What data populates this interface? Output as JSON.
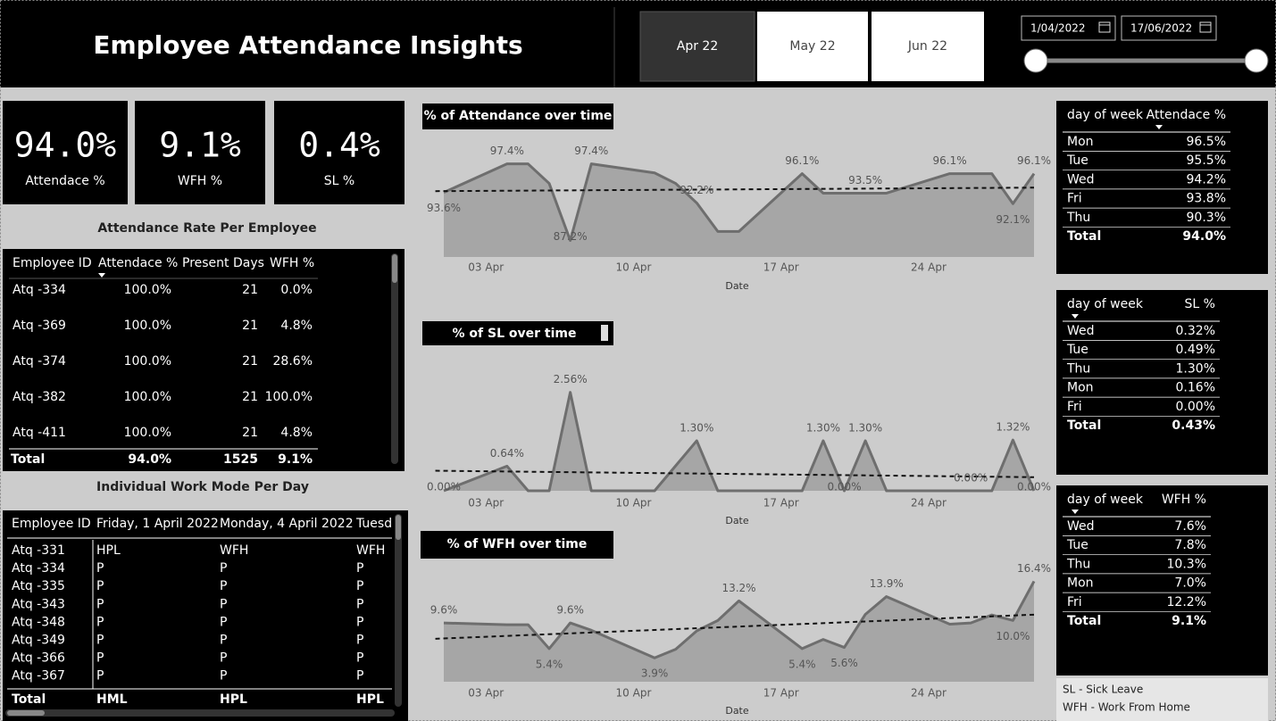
{
  "header": {
    "title": "Employee Attendance Insights",
    "months": [
      "Apr 22",
      "May 22",
      "Jun 22"
    ],
    "date_from": "1/04/2022",
    "date_to": "17/06/2022"
  },
  "kpis": [
    {
      "value": "94.0%",
      "label": "Attendace %"
    },
    {
      "value": "9.1%",
      "label": "WFH %"
    },
    {
      "value": "0.4%",
      "label": "SL %"
    }
  ],
  "employee_table": {
    "title": "Attendance Rate Per Employee",
    "columns": [
      "Employee ID",
      "Attendace %",
      "Present Days",
      "WFH %"
    ],
    "rows": [
      [
        "Atq -334",
        "100.0%",
        "21",
        "0.0%"
      ],
      [
        "Atq -369",
        "100.0%",
        "21",
        "4.8%"
      ],
      [
        "Atq -374",
        "100.0%",
        "21",
        "28.6%"
      ],
      [
        "Atq -382",
        "100.0%",
        "21",
        "100.0%"
      ],
      [
        "Atq -411",
        "100.0%",
        "21",
        "4.8%"
      ]
    ],
    "total": [
      "Total",
      "94.0%",
      "1525",
      "9.1%"
    ]
  },
  "work_mode_table": {
    "title": "Individual Work Mode Per Day",
    "columns": [
      "Employee ID",
      "Friday, 1 April 2022",
      "Monday, 4 April 2022",
      "Tuesda"
    ],
    "rows": [
      [
        "Atq -331",
        "HPL",
        "WFH",
        "WFH"
      ],
      [
        "Atq -334",
        "P",
        "P",
        "P"
      ],
      [
        "Atq -335",
        "P",
        "P",
        "P"
      ],
      [
        "Atq -343",
        "P",
        "P",
        "P"
      ],
      [
        "Atq -348",
        "P",
        "P",
        "P"
      ],
      [
        "Atq -349",
        "P",
        "P",
        "P"
      ],
      [
        "Atq -366",
        "P",
        "P",
        "P"
      ],
      [
        "Atq -367",
        "P",
        "P",
        "P"
      ]
    ],
    "total": [
      "Total",
      "HML",
      "HPL",
      "HPL"
    ]
  },
  "chart_data": [
    {
      "type": "line",
      "title": "% of Attendance over time",
      "x_label": "Date",
      "x": [
        1,
        4,
        5,
        6,
        7,
        8,
        11,
        12,
        13,
        14,
        15,
        18,
        19,
        20,
        21,
        22,
        25,
        26,
        27,
        28,
        29
      ],
      "values": [
        93.6,
        97.4,
        97.4,
        94.8,
        87.2,
        97.4,
        96.2,
        94.8,
        92.2,
        88.4,
        88.4,
        96.1,
        93.5,
        93.5,
        93.5,
        93.5,
        96.1,
        96.1,
        96.1,
        92.1,
        96.1
      ],
      "value_labels": [
        "93.6%",
        "97.4%",
        null,
        null,
        "87.2%",
        "97.4%",
        null,
        null,
        "92.2%",
        null,
        null,
        "96.1%",
        null,
        null,
        "93.5%",
        null,
        "96.1%",
        null,
        null,
        "92.1%",
        "96.1%"
      ],
      "xlim": [
        1,
        29
      ],
      "ylim": [
        85,
        99.5
      ],
      "xticks": [
        {
          "value": 3,
          "label": "03 Apr"
        },
        {
          "value": 10,
          "label": "10 Apr"
        },
        {
          "value": 17,
          "label": "17 Apr"
        },
        {
          "value": 24,
          "label": "24 Apr"
        }
      ],
      "color": "#6e6e6e",
      "area_color": "#a6a6a6",
      "trend_line": true
    },
    {
      "type": "line",
      "title": "% of SL over time",
      "x_label": "Date",
      "x": [
        1,
        4,
        5,
        6,
        7,
        8,
        11,
        12,
        13,
        14,
        15,
        18,
        19,
        20,
        21,
        22,
        25,
        26,
        27,
        28,
        29
      ],
      "values": [
        0,
        0.64,
        0,
        0,
        2.56,
        0,
        0,
        0.65,
        1.3,
        0,
        0,
        0,
        1.3,
        0,
        1.3,
        0,
        0,
        0,
        0,
        1.32,
        0
      ],
      "value_labels": [
        "0.00%",
        "0.64%",
        null,
        null,
        "2.56%",
        null,
        null,
        null,
        "1.30%",
        null,
        null,
        null,
        "1.30%",
        "0.00%",
        "1.30%",
        null,
        null,
        "0.00%",
        null,
        "1.32%",
        "0.00%"
      ],
      "xlim": [
        1,
        29
      ],
      "ylim": [
        0,
        2.9
      ],
      "xticks": [
        {
          "value": 3,
          "label": "03 Apr"
        },
        {
          "value": 10,
          "label": "10 Apr"
        },
        {
          "value": 17,
          "label": "17 Apr"
        },
        {
          "value": 24,
          "label": "24 Apr"
        }
      ],
      "color": "#6e6e6e",
      "area_color": "#a6a6a6",
      "trend_line": true
    },
    {
      "type": "line",
      "title": "% of WFH over time",
      "x_label": "Date",
      "x": [
        1,
        4,
        5,
        6,
        7,
        8,
        11,
        12,
        13,
        14,
        15,
        18,
        19,
        20,
        21,
        22,
        25,
        26,
        27,
        28,
        29
      ],
      "values": [
        9.6,
        9.3,
        9.3,
        5.4,
        9.6,
        8.4,
        3.9,
        5.3,
        8.3,
        10.0,
        13.2,
        5.4,
        6.9,
        5.6,
        11.0,
        13.9,
        9.4,
        9.6,
        10.9,
        10.0,
        16.4
      ],
      "value_labels": [
        "9.6%",
        null,
        null,
        "5.4%",
        "9.6%",
        null,
        "3.9%",
        null,
        null,
        null,
        "13.2%",
        "5.4%",
        null,
        "5.6%",
        null,
        "13.9%",
        null,
        null,
        null,
        "10.0%",
        "16.4%"
      ],
      "xlim": [
        1,
        29
      ],
      "ylim": [
        0,
        18.5
      ],
      "xticks": [
        {
          "value": 3,
          "label": "03 Apr"
        },
        {
          "value": 10,
          "label": "10 Apr"
        },
        {
          "value": 17,
          "label": "17 Apr"
        },
        {
          "value": 24,
          "label": "24 Apr"
        }
      ],
      "color": "#6e6e6e",
      "area_color": "#a6a6a6",
      "trend_line": true
    }
  ],
  "dow_tables": [
    {
      "columns": [
        "day of week",
        "Attendace %"
      ],
      "rows": [
        [
          "Mon",
          "96.5%"
        ],
        [
          "Tue",
          "95.5%"
        ],
        [
          "Wed",
          "94.2%"
        ],
        [
          "Fri",
          "93.8%"
        ],
        [
          "Thu",
          "90.3%"
        ]
      ],
      "total": [
        "Total",
        "94.0%"
      ]
    },
    {
      "columns": [
        "day of week",
        "SL %"
      ],
      "rows": [
        [
          "Wed",
          "0.32%"
        ],
        [
          "Tue",
          "0.49%"
        ],
        [
          "Thu",
          "1.30%"
        ],
        [
          "Mon",
          "0.16%"
        ],
        [
          "Fri",
          "0.00%"
        ]
      ],
      "total": [
        "Total",
        "0.43%"
      ]
    },
    {
      "columns": [
        "day of week",
        "WFH %"
      ],
      "rows": [
        [
          "Wed",
          "7.6%"
        ],
        [
          "Tue",
          "7.8%"
        ],
        [
          "Thu",
          "10.3%"
        ],
        [
          "Mon",
          "7.0%"
        ],
        [
          "Fri",
          "12.2%"
        ]
      ],
      "total": [
        "Total",
        "9.1%"
      ]
    }
  ],
  "legend_notes": [
    "SL - Sick Leave",
    "WFH - Work From Home"
  ]
}
